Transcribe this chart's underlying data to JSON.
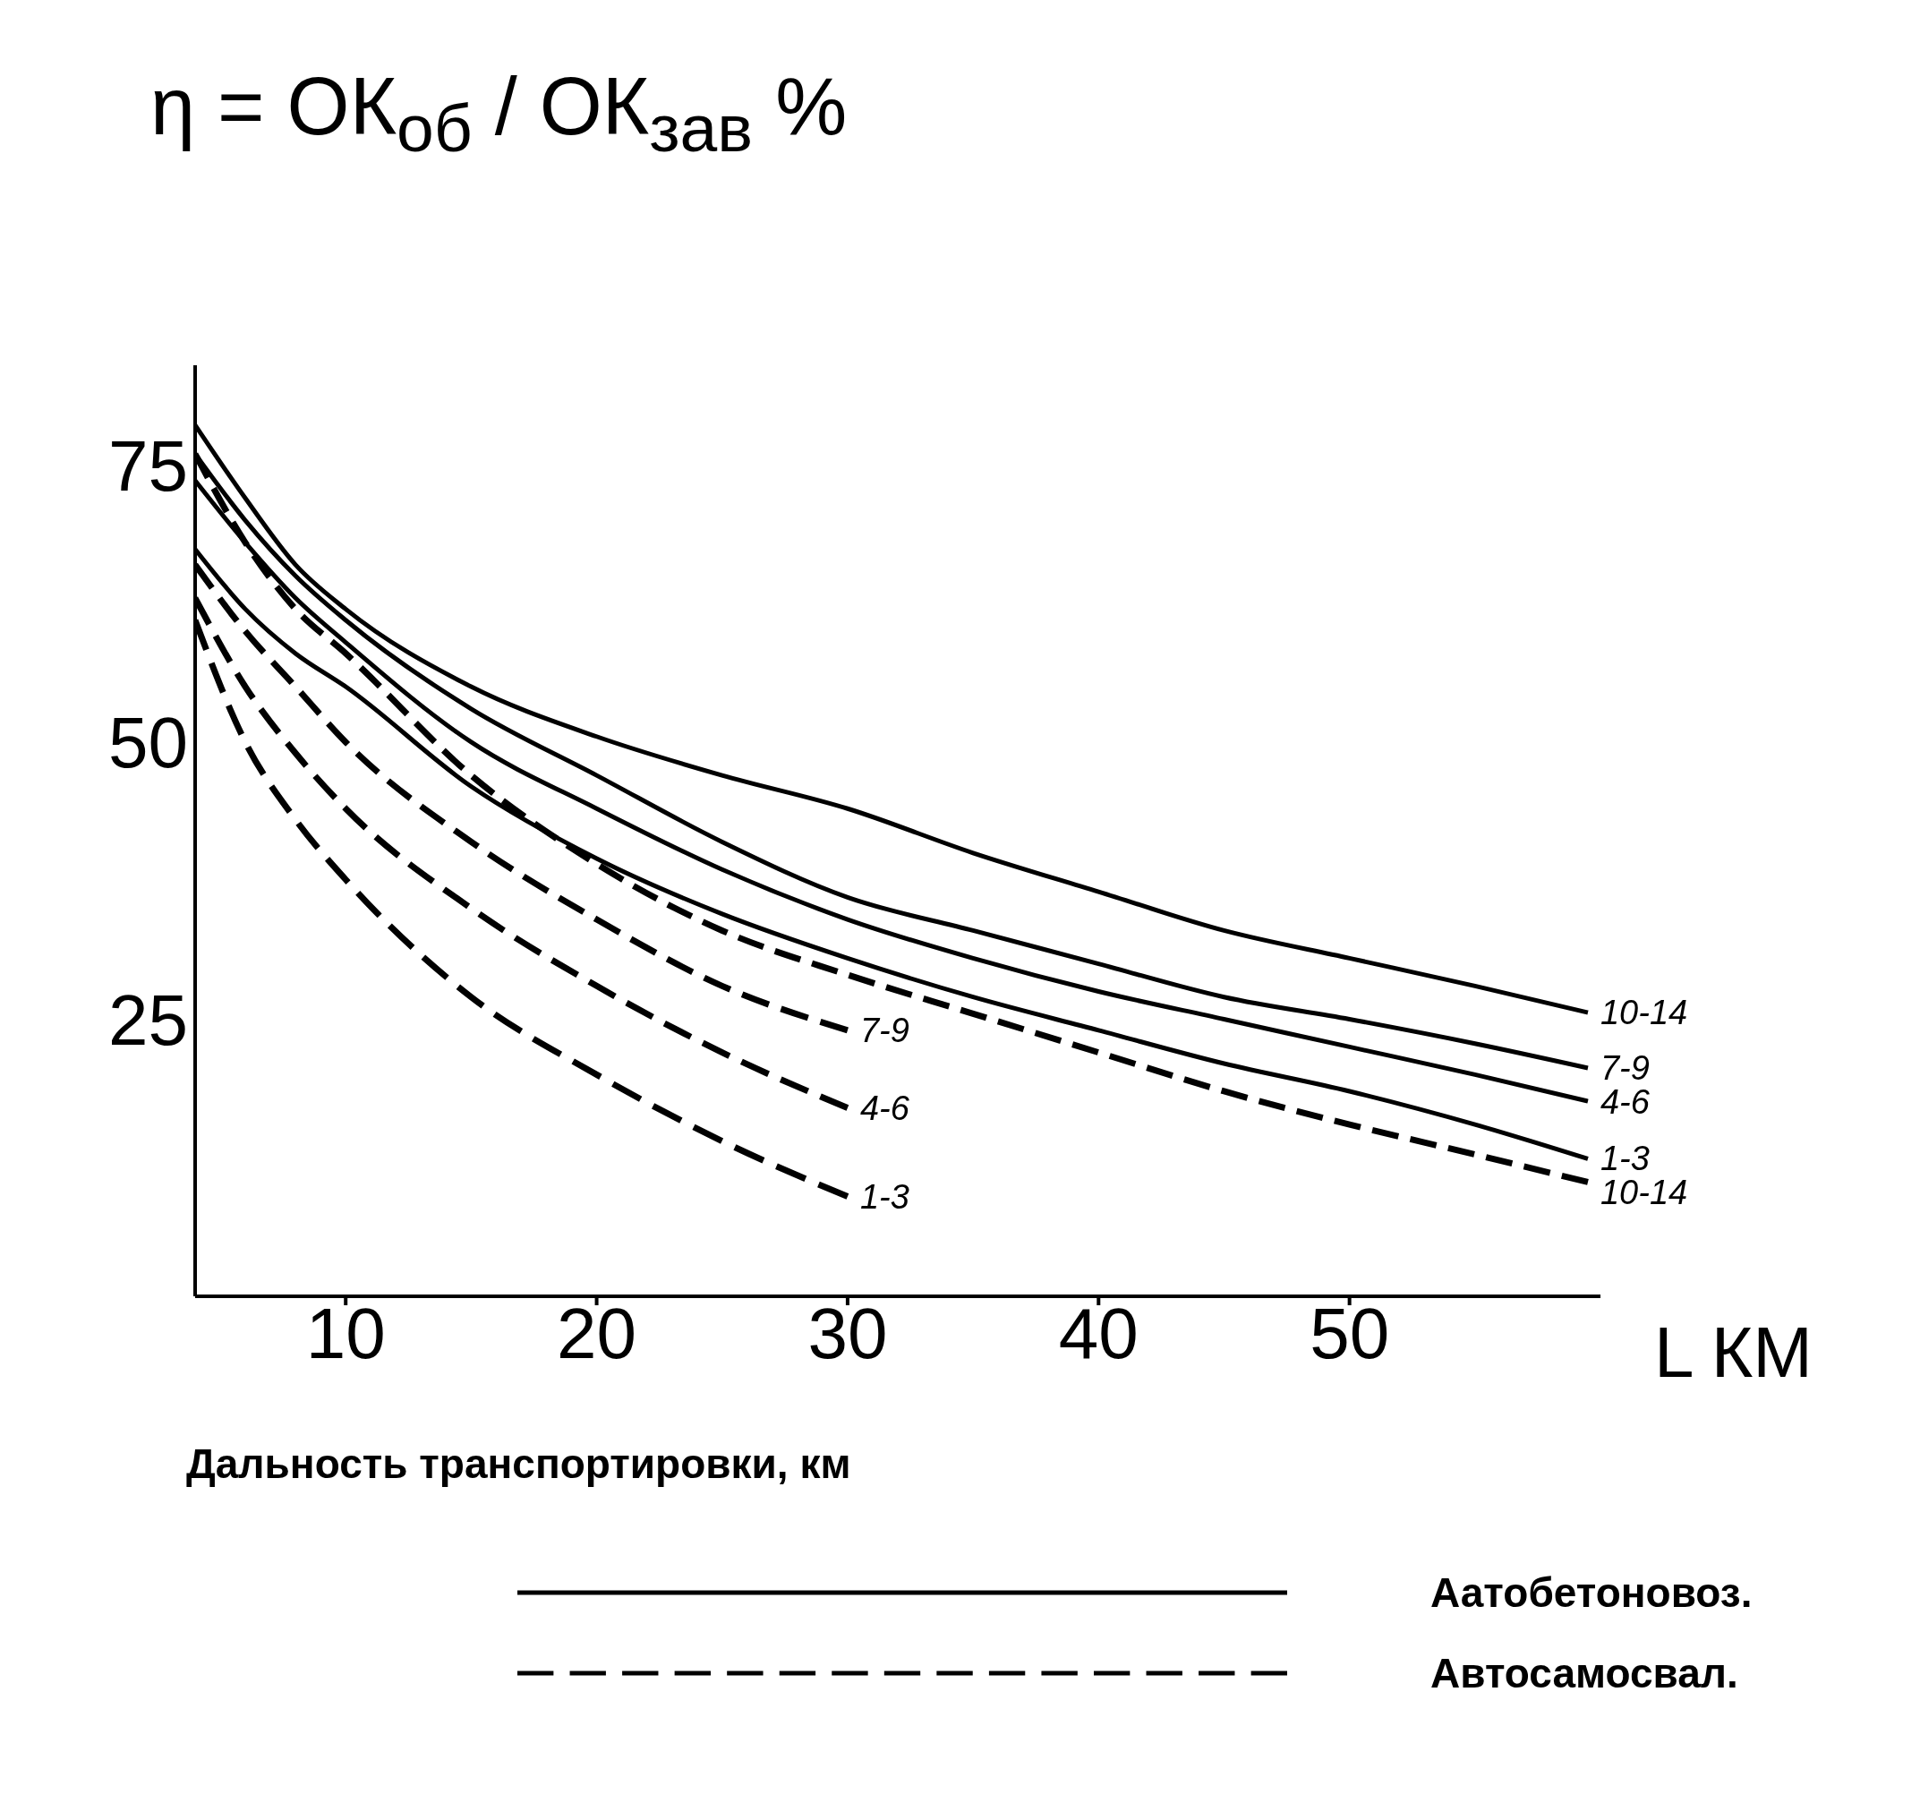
{
  "chart_data": {
    "type": "line",
    "ylabel": "η = ОК$_{об}$ / ОК$_{зав}$ %",
    "xlabel": "L КМ",
    "xlim": [
      4,
      60
    ],
    "xticks": [
      10,
      20,
      30,
      40,
      50
    ],
    "ylim": [
      0,
      84
    ],
    "yticks": [
      25,
      50,
      75
    ],
    "grid": false,
    "marker": "none",
    "series": [
      {
        "name": "10-14",
        "color": "#000000",
        "line_style": "solid",
        "x": [
          4,
          6,
          8,
          10,
          15,
          20,
          25,
          30,
          35,
          40,
          45,
          50,
          55,
          59.5
        ],
        "values": [
          78.6,
          72,
          66,
          62,
          55,
          50.5,
          47,
          44,
          40,
          36.5,
          33,
          30.5,
          28,
          25.6
        ]
      },
      {
        "name": "7-9",
        "color": "#000000",
        "line_style": "solid",
        "x": [
          4,
          6,
          8,
          10,
          15,
          20,
          25,
          30,
          35,
          40,
          45,
          50,
          55,
          59.5
        ],
        "values": [
          76,
          70,
          65,
          61,
          53,
          47,
          41,
          36,
          33,
          30,
          27,
          25,
          22.8,
          20.6
        ]
      },
      {
        "name": "4-6",
        "color": "#000000",
        "line_style": "solid",
        "x": [
          4,
          6,
          8,
          10,
          15,
          20,
          25,
          30,
          35,
          40,
          45,
          50,
          55,
          59.5
        ],
        "values": [
          73.6,
          68,
          63,
          59,
          50,
          44,
          38.5,
          34,
          30.5,
          27.5,
          25,
          22.5,
          20,
          17.6
        ]
      },
      {
        "name": "1-3",
        "color": "#000000",
        "line_style": "solid",
        "x": [
          4,
          6,
          8,
          10,
          15,
          20,
          25,
          30,
          35,
          40,
          45,
          50,
          55,
          59.5
        ],
        "values": [
          67.4,
          62,
          58,
          55,
          46,
          39.5,
          34.5,
          30.5,
          27,
          24,
          21,
          18.5,
          15.5,
          12.4
        ]
      },
      {
        "name": "10-14",
        "color": "#000000",
        "line_style": "dashed",
        "x": [
          4,
          6,
          8,
          10,
          15,
          20,
          25,
          30,
          35,
          40,
          45,
          50,
          55,
          59.5
        ],
        "values": [
          76,
          68,
          62,
          58,
          47,
          39,
          33,
          29,
          25.5,
          22,
          18.5,
          15.5,
          12.8,
          10.3
        ]
      },
      {
        "name": "7-9",
        "color": "#000000",
        "line_style": "dashed",
        "x": [
          4,
          6,
          8,
          10,
          15,
          20,
          25,
          30
        ],
        "values": [
          66,
          60,
          55,
          50,
          41,
          34,
          28,
          24
        ]
      },
      {
        "name": "4-6",
        "color": "#000000",
        "line_style": "dashed",
        "x": [
          4,
          6,
          8,
          10,
          15,
          20,
          25,
          30
        ],
        "values": [
          63,
          55,
          49,
          44,
          35,
          28,
          22,
          17
        ]
      },
      {
        "name": "1-3",
        "color": "#000000",
        "line_style": "dashed",
        "x": [
          4,
          6,
          8,
          10,
          15,
          20,
          25,
          30
        ],
        "values": [
          61,
          50,
          43,
          37.6,
          27,
          20,
          14,
          9
        ]
      }
    ],
    "annotations": [
      "Дальность транспортировки, км",
      "Аатобетоновоз.",
      "Автосамосвал."
    ]
  }
}
